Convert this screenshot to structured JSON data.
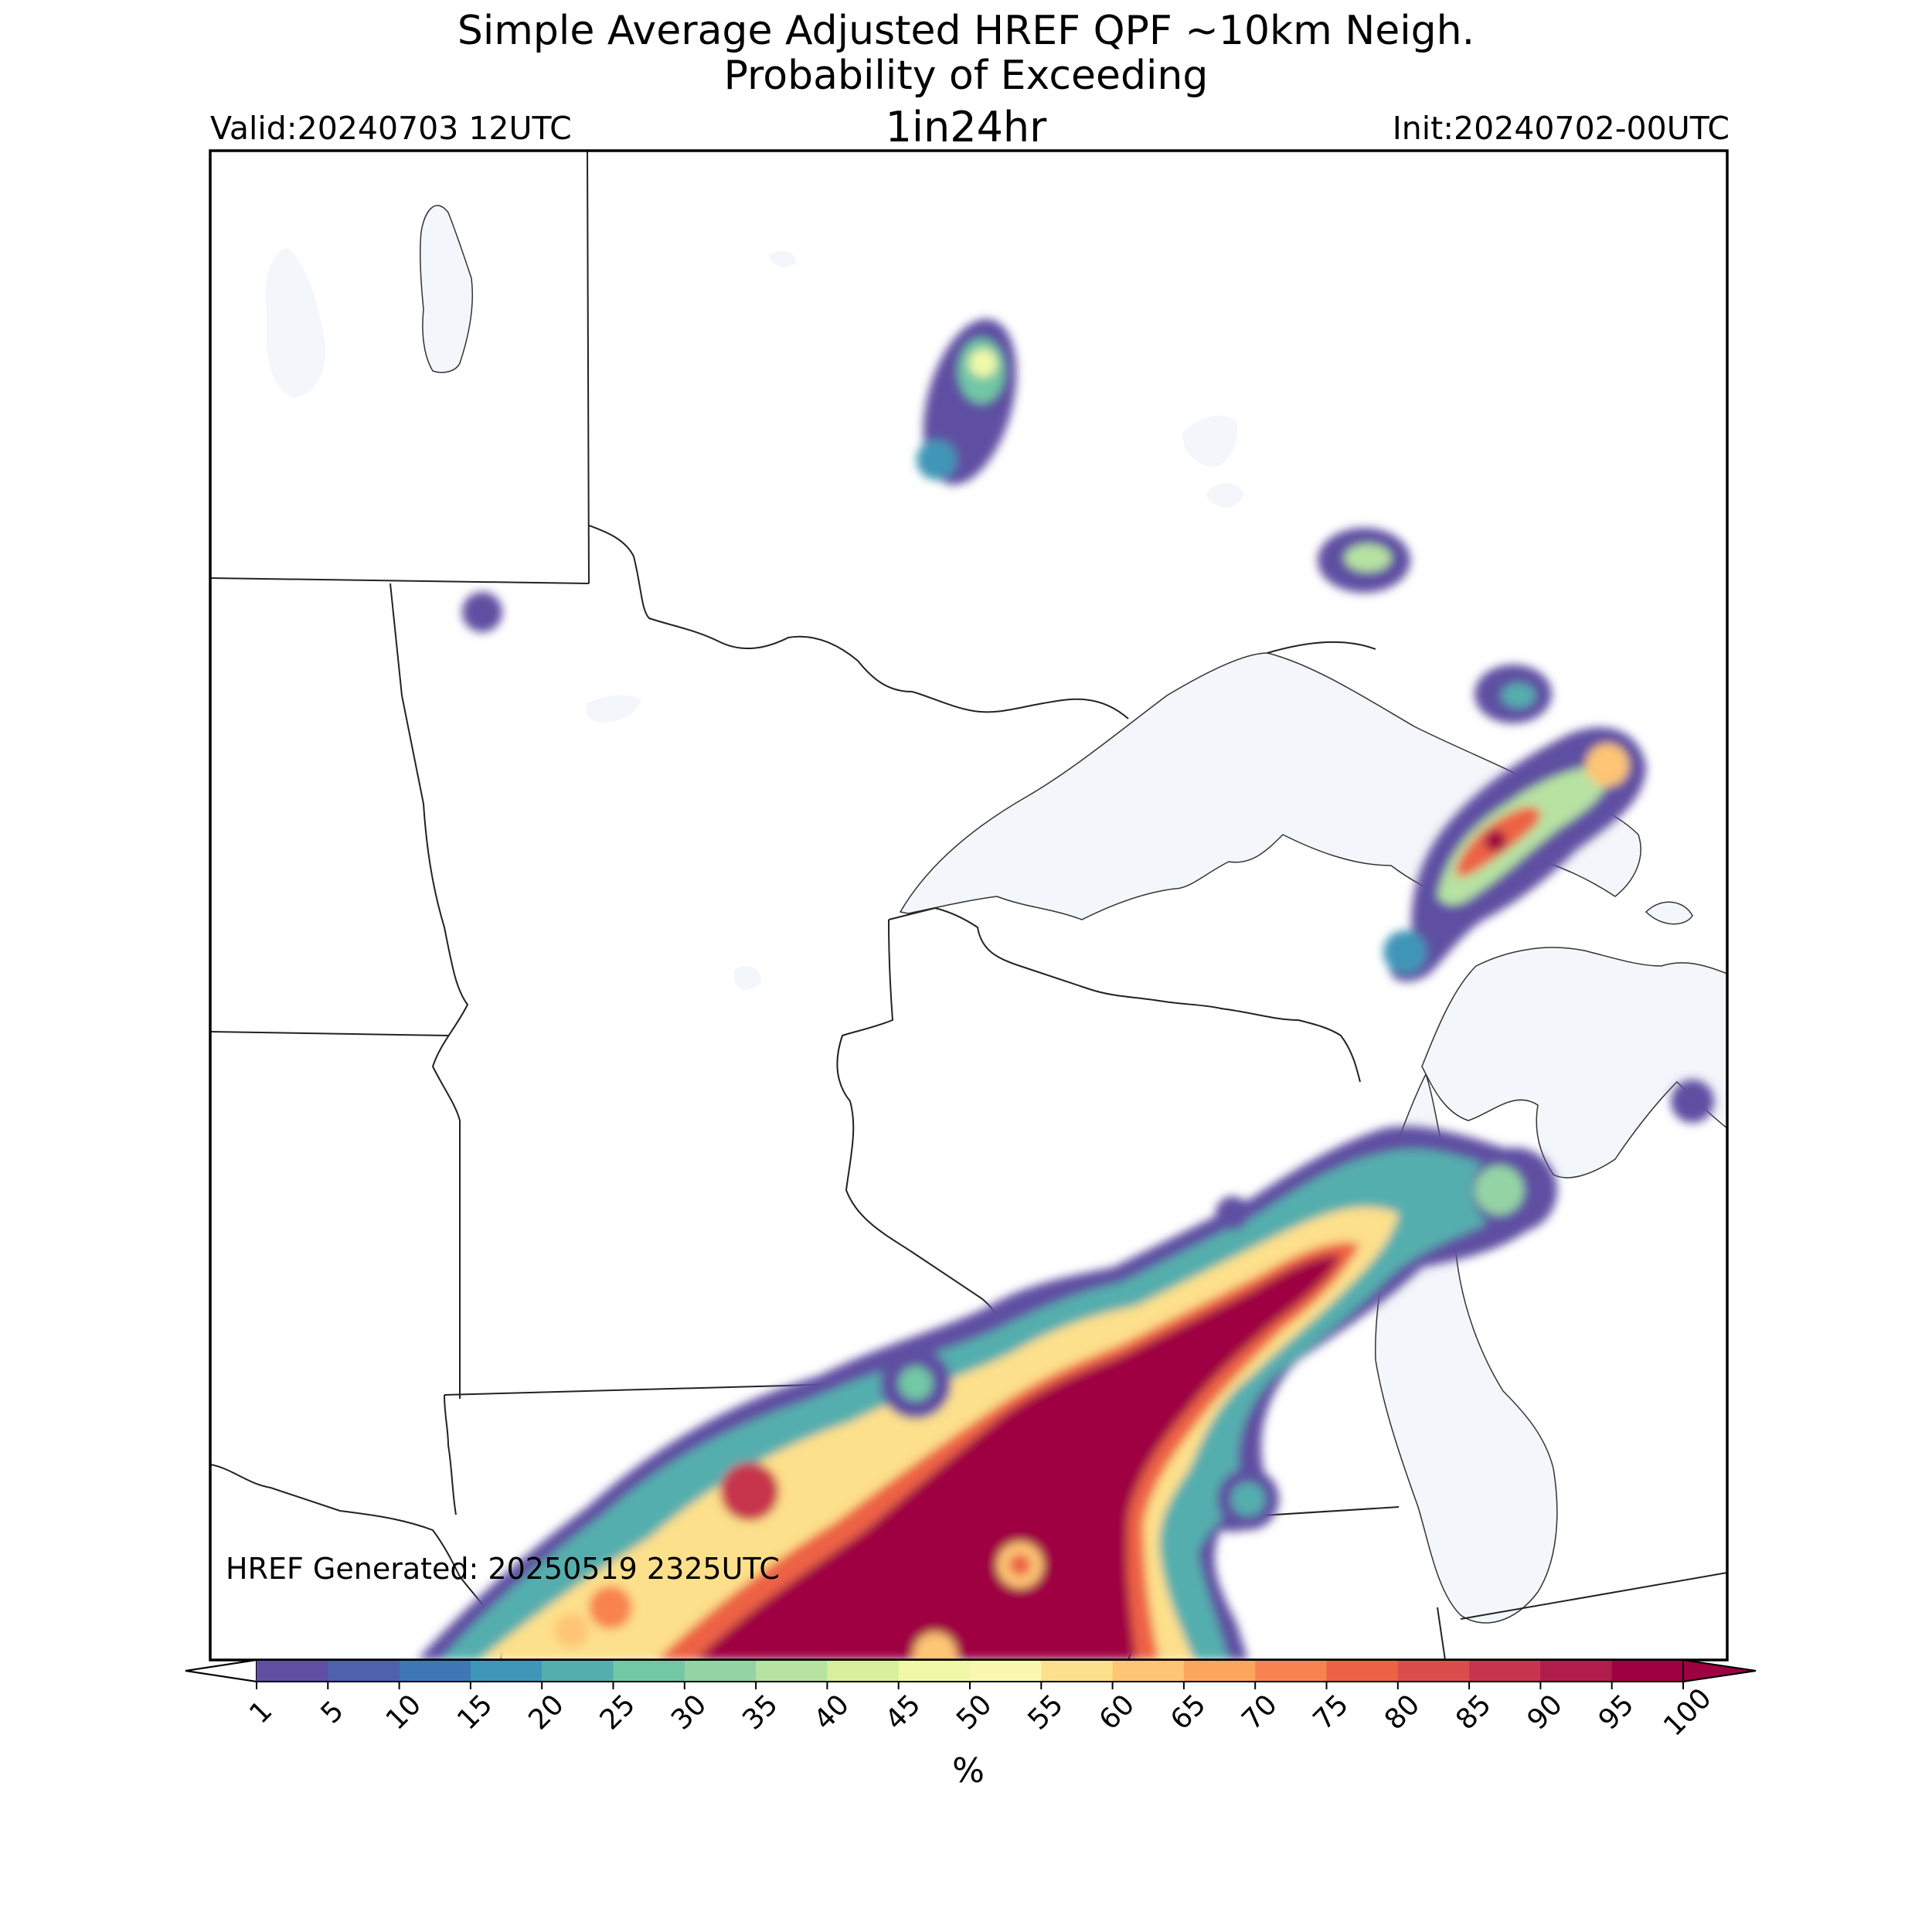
{
  "header": {
    "title_line1": "Simple Average Adjusted HREF QPF ~10km Neigh.",
    "title_line2": "Probability of Exceeding",
    "threshold": "1in24hr",
    "valid": "Valid:20240703 12UTC",
    "init": "Init:20240702-00UTC"
  },
  "map": {
    "generated_label": "HREF Generated: 20250519 2325UTC",
    "water_color": "#f3f6fa",
    "border_color": "#222222"
  },
  "colorbar": {
    "ticks": [
      "1",
      "5",
      "10",
      "15",
      "20",
      "25",
      "30",
      "35",
      "40",
      "45",
      "50",
      "55",
      "60",
      "65",
      "70",
      "75",
      "80",
      "85",
      "90",
      "95",
      "100"
    ],
    "colors": [
      "#5e4fa2",
      "#4f61aa",
      "#3f77b4",
      "#3f96b7",
      "#55aeae",
      "#72c7a5",
      "#94d4a4",
      "#b7e2a2",
      "#d8ef9b",
      "#f1f9a9",
      "#fbf7b0",
      "#fde08b",
      "#fdc574",
      "#fca55d",
      "#f88350",
      "#ed6245",
      "#db4d4c",
      "#c7344d",
      "#b01c4c",
      "#9e0142"
    ],
    "under_color": "#ffffff",
    "over_color": "#9e0142",
    "label": "%"
  }
}
